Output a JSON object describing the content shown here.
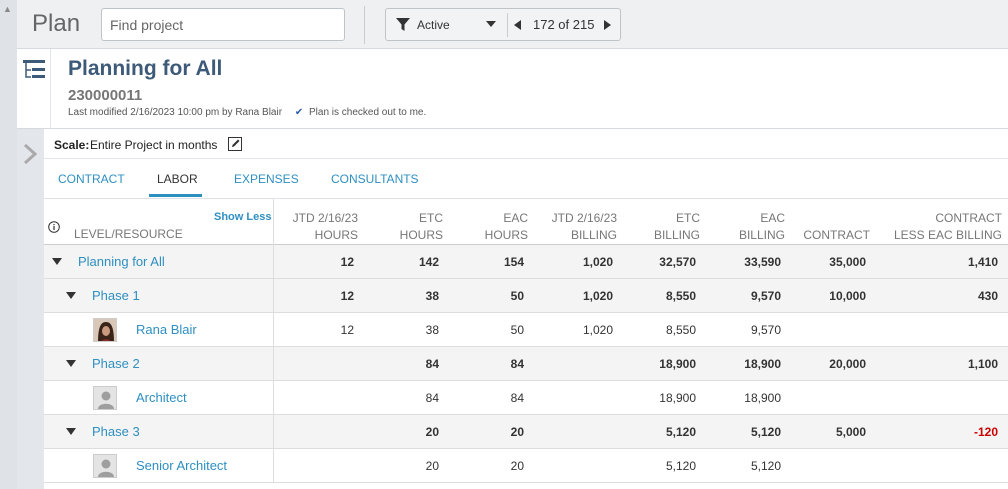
{
  "topbar": {
    "title": "Plan",
    "search_placeholder": "Find project",
    "filter_value": "Active",
    "record_counter": "172 of 215"
  },
  "project": {
    "title": "Planning for All",
    "number": "230000011",
    "last_modified": "Last modified 2/16/2023 10:00 pm by Rana Blair",
    "checkout_status": "Plan is checked out to me."
  },
  "scale": {
    "label": "Scale:",
    "value": "Entire Project in months"
  },
  "tabs": [
    {
      "label": "CONTRACT"
    },
    {
      "label": "LABOR"
    },
    {
      "label": "EXPENSES"
    },
    {
      "label": "CONSULTANTS"
    }
  ],
  "active_tab": "LABOR",
  "grid": {
    "show_less_label": "Show Less",
    "level_header": "LEVEL/RESOURCE",
    "columns": [
      {
        "line1": "JTD 2/16/23",
        "line2": "HOURS"
      },
      {
        "line1": "ETC",
        "line2": "HOURS"
      },
      {
        "line1": "EAC",
        "line2": "HOURS"
      },
      {
        "line1": "JTD 2/16/23",
        "line2": "BILLING"
      },
      {
        "line1": "ETC",
        "line2": "BILLING"
      },
      {
        "line1": "EAC",
        "line2": "BILLING"
      },
      {
        "line1": "",
        "line2": "CONTRACT"
      },
      {
        "line1": "CONTRACT",
        "line2": "LESS EAC BILLING"
      }
    ],
    "rows": [
      {
        "name": "Planning for All",
        "level": 0,
        "type": "summary",
        "values": [
          "12",
          "142",
          "154",
          "1,020",
          "32,570",
          "33,590",
          "35,000",
          "1,410"
        ]
      },
      {
        "name": "Phase 1",
        "level": 1,
        "type": "summary",
        "values": [
          "12",
          "38",
          "50",
          "1,020",
          "8,550",
          "9,570",
          "10,000",
          "430"
        ]
      },
      {
        "name": "Rana Blair",
        "level": 2,
        "type": "resource",
        "avatar": "photo",
        "values": [
          "12",
          "38",
          "50",
          "1,020",
          "8,550",
          "9,570",
          "",
          ""
        ]
      },
      {
        "name": "Phase 2",
        "level": 1,
        "type": "summary",
        "values": [
          "",
          "84",
          "84",
          "",
          "18,900",
          "18,900",
          "20,000",
          "1,100"
        ]
      },
      {
        "name": "Architect",
        "level": 2,
        "type": "resource",
        "avatar": "placeholder",
        "values": [
          "",
          "84",
          "84",
          "",
          "18,900",
          "18,900",
          "",
          ""
        ]
      },
      {
        "name": "Phase 3",
        "level": 1,
        "type": "summary",
        "values": [
          "",
          "20",
          "20",
          "",
          "5,120",
          "5,120",
          "5,000",
          "-120"
        ]
      },
      {
        "name": "Senior Architect",
        "level": 2,
        "type": "resource",
        "avatar": "placeholder",
        "values": [
          "",
          "20",
          "20",
          "",
          "5,120",
          "5,120",
          "",
          ""
        ]
      }
    ]
  },
  "colors": {
    "link": "#2e8fc1",
    "title": "#3d5a78",
    "negative": "#cc0000"
  }
}
